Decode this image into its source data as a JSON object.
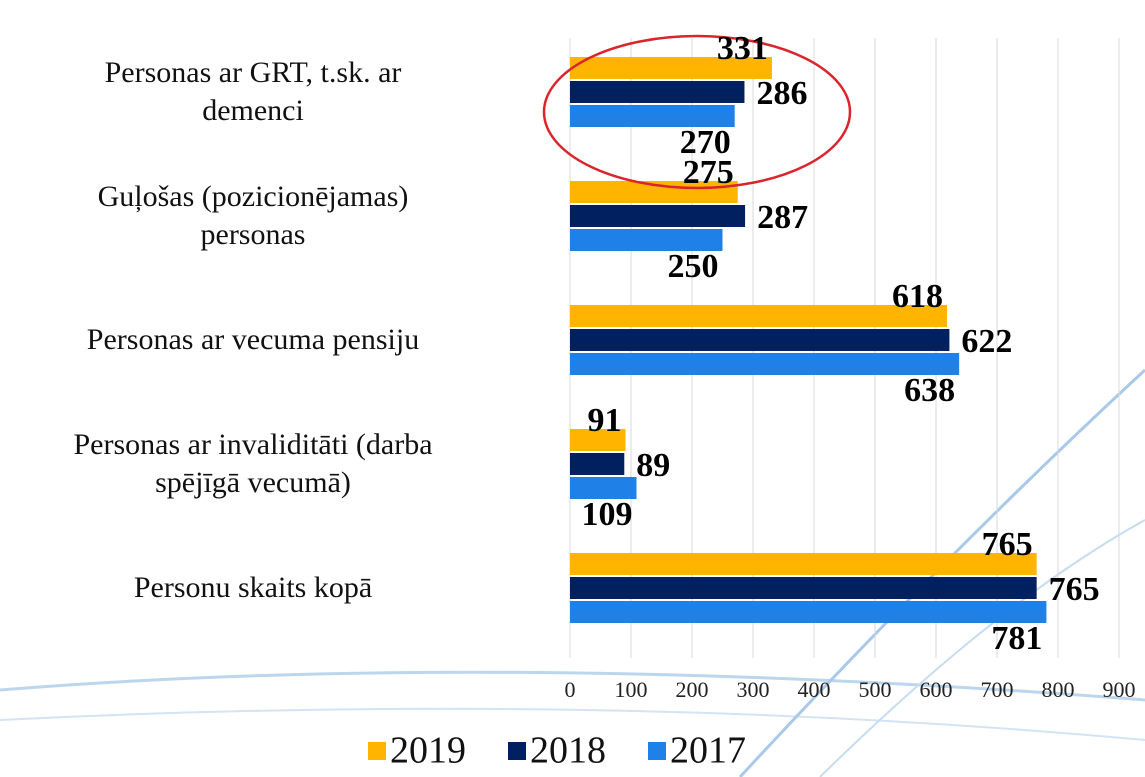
{
  "chart_data": {
    "type": "hbar",
    "categories": [
      "Personas ar GRT, t.sk. ar\ndemenci",
      "Guļošas (pozicionējamas)\npersonas",
      "Personas ar vecuma pensiju",
      "Personas ar invaliditāti (darba\nspējīgā vecumā)",
      "Personu skaits kopā"
    ],
    "series": [
      {
        "name": "2019",
        "color": "#ffb400",
        "values": [
          331,
          275,
          618,
          91,
          765
        ]
      },
      {
        "name": "2018",
        "color": "#002060",
        "values": [
          286,
          287,
          622,
          89,
          765
        ]
      },
      {
        "name": "2017",
        "color": "#1f80e8",
        "values": [
          270,
          250,
          638,
          109,
          781
        ]
      }
    ],
    "xlim": [
      0,
      900
    ],
    "xticks": [
      0,
      100,
      200,
      300,
      400,
      500,
      600,
      700,
      800,
      900
    ],
    "grid": true
  }
}
